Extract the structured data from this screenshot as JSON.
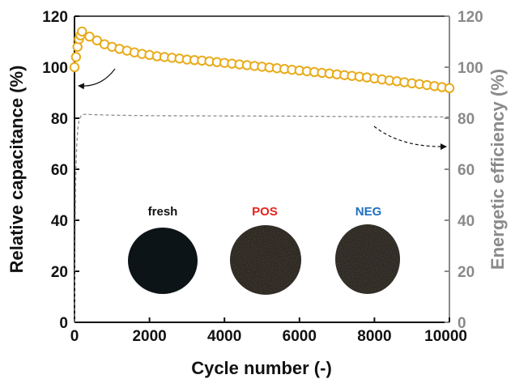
{
  "chart_data": {
    "type": "scatter",
    "xlabel": "Cycle number (-)",
    "ylabel_left": "Relative capacitance (%)",
    "ylabel_right": "Energetic efficiency (%)",
    "xlim": [
      0,
      10000
    ],
    "ylim_left": [
      0,
      120
    ],
    "ylim_right": [
      0,
      120
    ],
    "x_ticks": [
      0,
      2000,
      4000,
      6000,
      8000,
      10000
    ],
    "y_ticks_left": [
      0,
      20,
      40,
      60,
      80,
      100,
      120
    ],
    "y_ticks_right": [
      0,
      20,
      40,
      60,
      80,
      100,
      120
    ],
    "grid": false,
    "series": [
      {
        "axis": "left",
        "style": "open-circle",
        "color": "#e8ac1c",
        "x": [
          0,
          40,
          80,
          120,
          160,
          200,
          400,
          600,
          800,
          1000,
          1200,
          1400,
          1600,
          1800,
          2000,
          2200,
          2400,
          2600,
          2800,
          3000,
          3200,
          3400,
          3600,
          3800,
          4000,
          4200,
          4400,
          4600,
          4800,
          5000,
          5200,
          5400,
          5600,
          5800,
          6000,
          6200,
          6400,
          6600,
          6800,
          7000,
          7200,
          7400,
          7600,
          7800,
          8000,
          8200,
          8400,
          8600,
          8800,
          9000,
          9200,
          9400,
          9600,
          9800,
          10000
        ],
        "y": [
          100,
          104,
          108,
          111,
          112.5,
          114,
          112,
          110.5,
          109,
          108,
          107.2,
          106.5,
          105.8,
          105.2,
          104.8,
          104.3,
          104,
          103.7,
          103.4,
          103,
          102.8,
          102.6,
          102.3,
          102,
          101.7,
          101.4,
          101.1,
          100.8,
          100.5,
          100.2,
          99.9,
          99.6,
          99.3,
          99,
          98.7,
          98.4,
          98.1,
          97.8,
          97.5,
          97.2,
          96.9,
          96.6,
          96.3,
          96,
          95.6,
          95.2,
          94.8,
          94.5,
          94.1,
          93.7,
          93.4,
          93,
          92.6,
          92.2,
          91.8
        ]
      },
      {
        "axis": "right",
        "style": "dashed-line",
        "color": "#8c8c8c",
        "x": [
          0,
          30,
          60,
          90,
          120,
          160,
          200,
          300,
          1000,
          2000,
          4000,
          6000,
          8000,
          10000
        ],
        "y": [
          0,
          55,
          70,
          76,
          79,
          80.5,
          81.5,
          81.5,
          81.2,
          81,
          80.9,
          80.8,
          80.6,
          80.5
        ]
      }
    ],
    "samples": [
      {
        "label": "fresh",
        "color": "#111111"
      },
      {
        "label": "POS",
        "color": "#e8231c"
      },
      {
        "label": "NEG",
        "color": "#1f6fc0"
      }
    ]
  }
}
